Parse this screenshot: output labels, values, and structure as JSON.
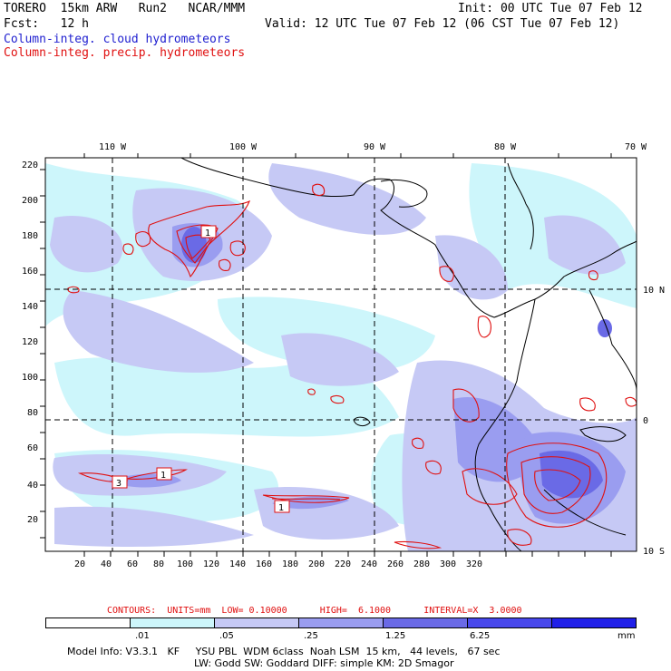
{
  "header": {
    "model": "TORERO  15km ARW   Run2   NCAR/MMM",
    "init": "Init: 00 UTC Tue 07 Feb 12",
    "fcst": "Fcst:   12 h",
    "valid": "Valid: 12 UTC Tue 07 Feb 12 (06 CST Tue 07 Feb 12)",
    "field_cloud": "Column-integ. cloud hydrometeors",
    "field_precip": "Column-integ. precip. hydrometeors"
  },
  "map": {
    "lon_labels": [
      "110 W",
      "100 W",
      "90 W",
      "80 W",
      "70 W"
    ],
    "lat_labels": [
      "10 N",
      "0",
      "10 S"
    ],
    "y_ticks": [
      "20",
      "40",
      "60",
      "80",
      "100",
      "120",
      "140",
      "160",
      "180",
      "200",
      "220"
    ],
    "x_ticks": [
      "20",
      "40",
      "60",
      "80",
      "100",
      "120",
      "140",
      "160",
      "180",
      "200",
      "220",
      "240",
      "260",
      "280",
      "300",
      "320"
    ],
    "contour_labels": [
      "3",
      "1",
      "1",
      "1"
    ],
    "colors": {
      "cloud_light": "#cdf6fb",
      "cloud_mid": "#c6c9f5",
      "cloud_strong": "#9a9df0",
      "cloud_deep": "#6a6ae6",
      "precip": "#e01010",
      "coast": "#000000"
    }
  },
  "contour_info": {
    "label": "CONTOURS:  UNITS=mm  LOW= 0.10000      HIGH=  6.1000      INTERVAL=X  3.0000"
  },
  "colorbar": {
    "colors": [
      "#ffffff",
      "#cdf6fb",
      "#c6c9f5",
      "#9a9df0",
      "#6a6ae6",
      "#4848ec",
      "#2020e8"
    ],
    "labels": [
      ".01",
      ".05",
      ".25",
      "1.25",
      "6.25"
    ],
    "unit": "mm"
  },
  "footer": {
    "line1": "Model Info: V3.3.1   KF     YSU PBL  WDM 6class  Noah LSM  15 km,   44 levels,   67 sec",
    "line2": "LW: Godd SW: Goddard DIFF: simple KM: 2D Smagor"
  }
}
